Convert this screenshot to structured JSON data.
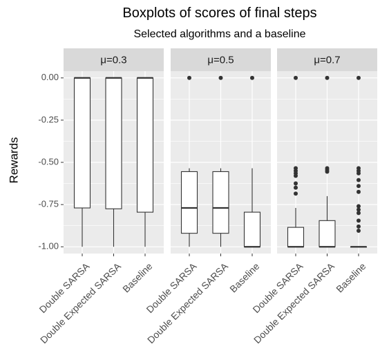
{
  "chart_data": {
    "type": "box",
    "title": "Boxplots of scores of final steps",
    "subtitle": "Selected algorithms and a baseline",
    "ylabel": "Rewards",
    "xlabel": "",
    "ylim": [
      -1.04,
      0.04
    ],
    "yticks": [
      0.0,
      -0.25,
      -0.5,
      -0.75,
      -1.0
    ],
    "ytick_labels": [
      "0.00",
      "-0.25",
      "-0.50",
      "-0.75",
      "-1.00"
    ],
    "categories": [
      "Double SARSA",
      "Double Expected SARSA",
      "Baseline"
    ],
    "grid": true,
    "panels": [
      {
        "label": "μ=0.3",
        "boxes": [
          {
            "category": "Double SARSA",
            "whisker_low": -1.0,
            "q1": -0.77,
            "median": 0.0,
            "q3": 0.0,
            "whisker_high": 0.0,
            "outliers": []
          },
          {
            "category": "Double Expected SARSA",
            "whisker_low": -1.0,
            "q1": -0.775,
            "median": 0.0,
            "q3": 0.0,
            "whisker_high": 0.0,
            "outliers": []
          },
          {
            "category": "Baseline",
            "whisker_low": -1.0,
            "q1": -0.795,
            "median": 0.0,
            "q3": 0.0,
            "whisker_high": 0.0,
            "outliers": []
          }
        ]
      },
      {
        "label": "μ=0.5",
        "boxes": [
          {
            "category": "Double SARSA",
            "whisker_low": -1.0,
            "q1": -0.92,
            "median": -0.77,
            "q3": -0.555,
            "whisker_high": -0.535,
            "outliers": [
              0.0
            ]
          },
          {
            "category": "Double Expected SARSA",
            "whisker_low": -1.0,
            "q1": -0.92,
            "median": -0.77,
            "q3": -0.555,
            "whisker_high": -0.535,
            "outliers": [
              0.0
            ]
          },
          {
            "category": "Baseline",
            "whisker_low": -1.0,
            "q1": -1.0,
            "median": -1.0,
            "q3": -0.795,
            "whisker_high": -0.535,
            "outliers": [
              0.0
            ]
          }
        ]
      },
      {
        "label": "μ=0.7",
        "boxes": [
          {
            "category": "Double SARSA",
            "whisker_low": -1.0,
            "q1": -1.0,
            "median": -1.0,
            "q3": -0.885,
            "whisker_high": -0.77,
            "outliers": [
              0.0,
              -0.535,
              -0.55,
              -0.565,
              -0.58,
              -0.625,
              -0.65,
              -0.685
            ]
          },
          {
            "category": "Double Expected SARSA",
            "whisker_low": -1.0,
            "q1": -1.0,
            "median": -1.0,
            "q3": -0.845,
            "whisker_high": -0.7,
            "outliers": [
              0.0,
              -0.535,
              -0.545,
              -0.555
            ]
          },
          {
            "category": "Baseline",
            "whisker_low": -1.0,
            "q1": -1.0,
            "median": -1.0,
            "q3": -1.0,
            "whisker_high": -1.0,
            "outliers": [
              0.0,
              -0.535,
              -0.55,
              -0.565,
              -0.605,
              -0.64,
              -0.675,
              -0.76,
              -0.78,
              -0.8,
              -0.845,
              -0.88,
              -0.905
            ]
          }
        ]
      }
    ]
  }
}
